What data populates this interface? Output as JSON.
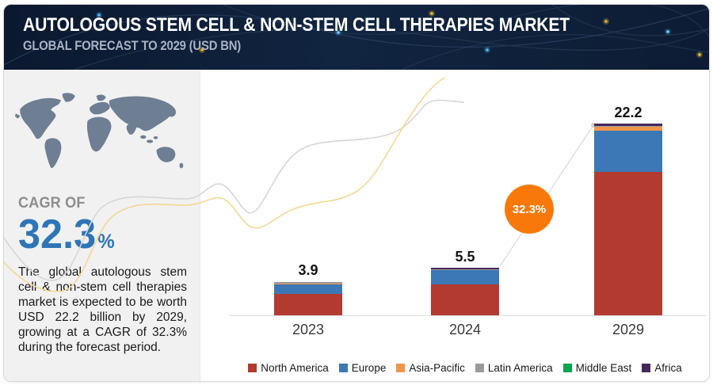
{
  "header": {
    "title": "AUTOLOGOUS STEM CELL & NON-STEM CELL THERAPIES MARKET",
    "subtitle": "GLOBAL FORECAST TO 2029 (USD BN)"
  },
  "sidebar": {
    "cagr_label": "CAGR OF",
    "cagr_value": "32.3",
    "cagr_unit": "%",
    "description": "The global autologous stem cell & non-stem cell therapies market is expected to be worth USD 22.2 billion by 2029, growing at a CAGR of 32.3% during the forecast period."
  },
  "chart_data": {
    "type": "bar",
    "stacked": true,
    "unit": "USD BN",
    "categories": [
      "2023",
      "2024",
      "2029"
    ],
    "totals": [
      3.9,
      5.5,
      22.2
    ],
    "total_labels": [
      "3.9",
      "5.5",
      "22.2"
    ],
    "series": [
      {
        "name": "North America",
        "color": "#b23a31",
        "values": [
          2.45,
          3.6,
          16.6
        ]
      },
      {
        "name": "Europe",
        "color": "#3c78b5",
        "values": [
          1.15,
          1.62,
          4.75
        ]
      },
      {
        "name": "Asia-Pacific",
        "color": "#f0964c",
        "values": [
          0.05,
          0.04,
          0.45
        ]
      },
      {
        "name": "Latin America",
        "color": "#9b9b9b",
        "values": [
          0.17,
          0.05,
          0.12
        ]
      },
      {
        "name": "Middle East",
        "color": "#00a551",
        "values": [
          0.03,
          0.04,
          0.05
        ]
      },
      {
        "name": "Africa",
        "color": "#45275b",
        "values": [
          0.05,
          0.15,
          0.23
        ]
      }
    ],
    "growth_badge": "32.3%",
    "growth_badge_color": "#f8790a",
    "legend_position": "bottom",
    "ylim": [
      0,
      24
    ],
    "grid": false
  }
}
